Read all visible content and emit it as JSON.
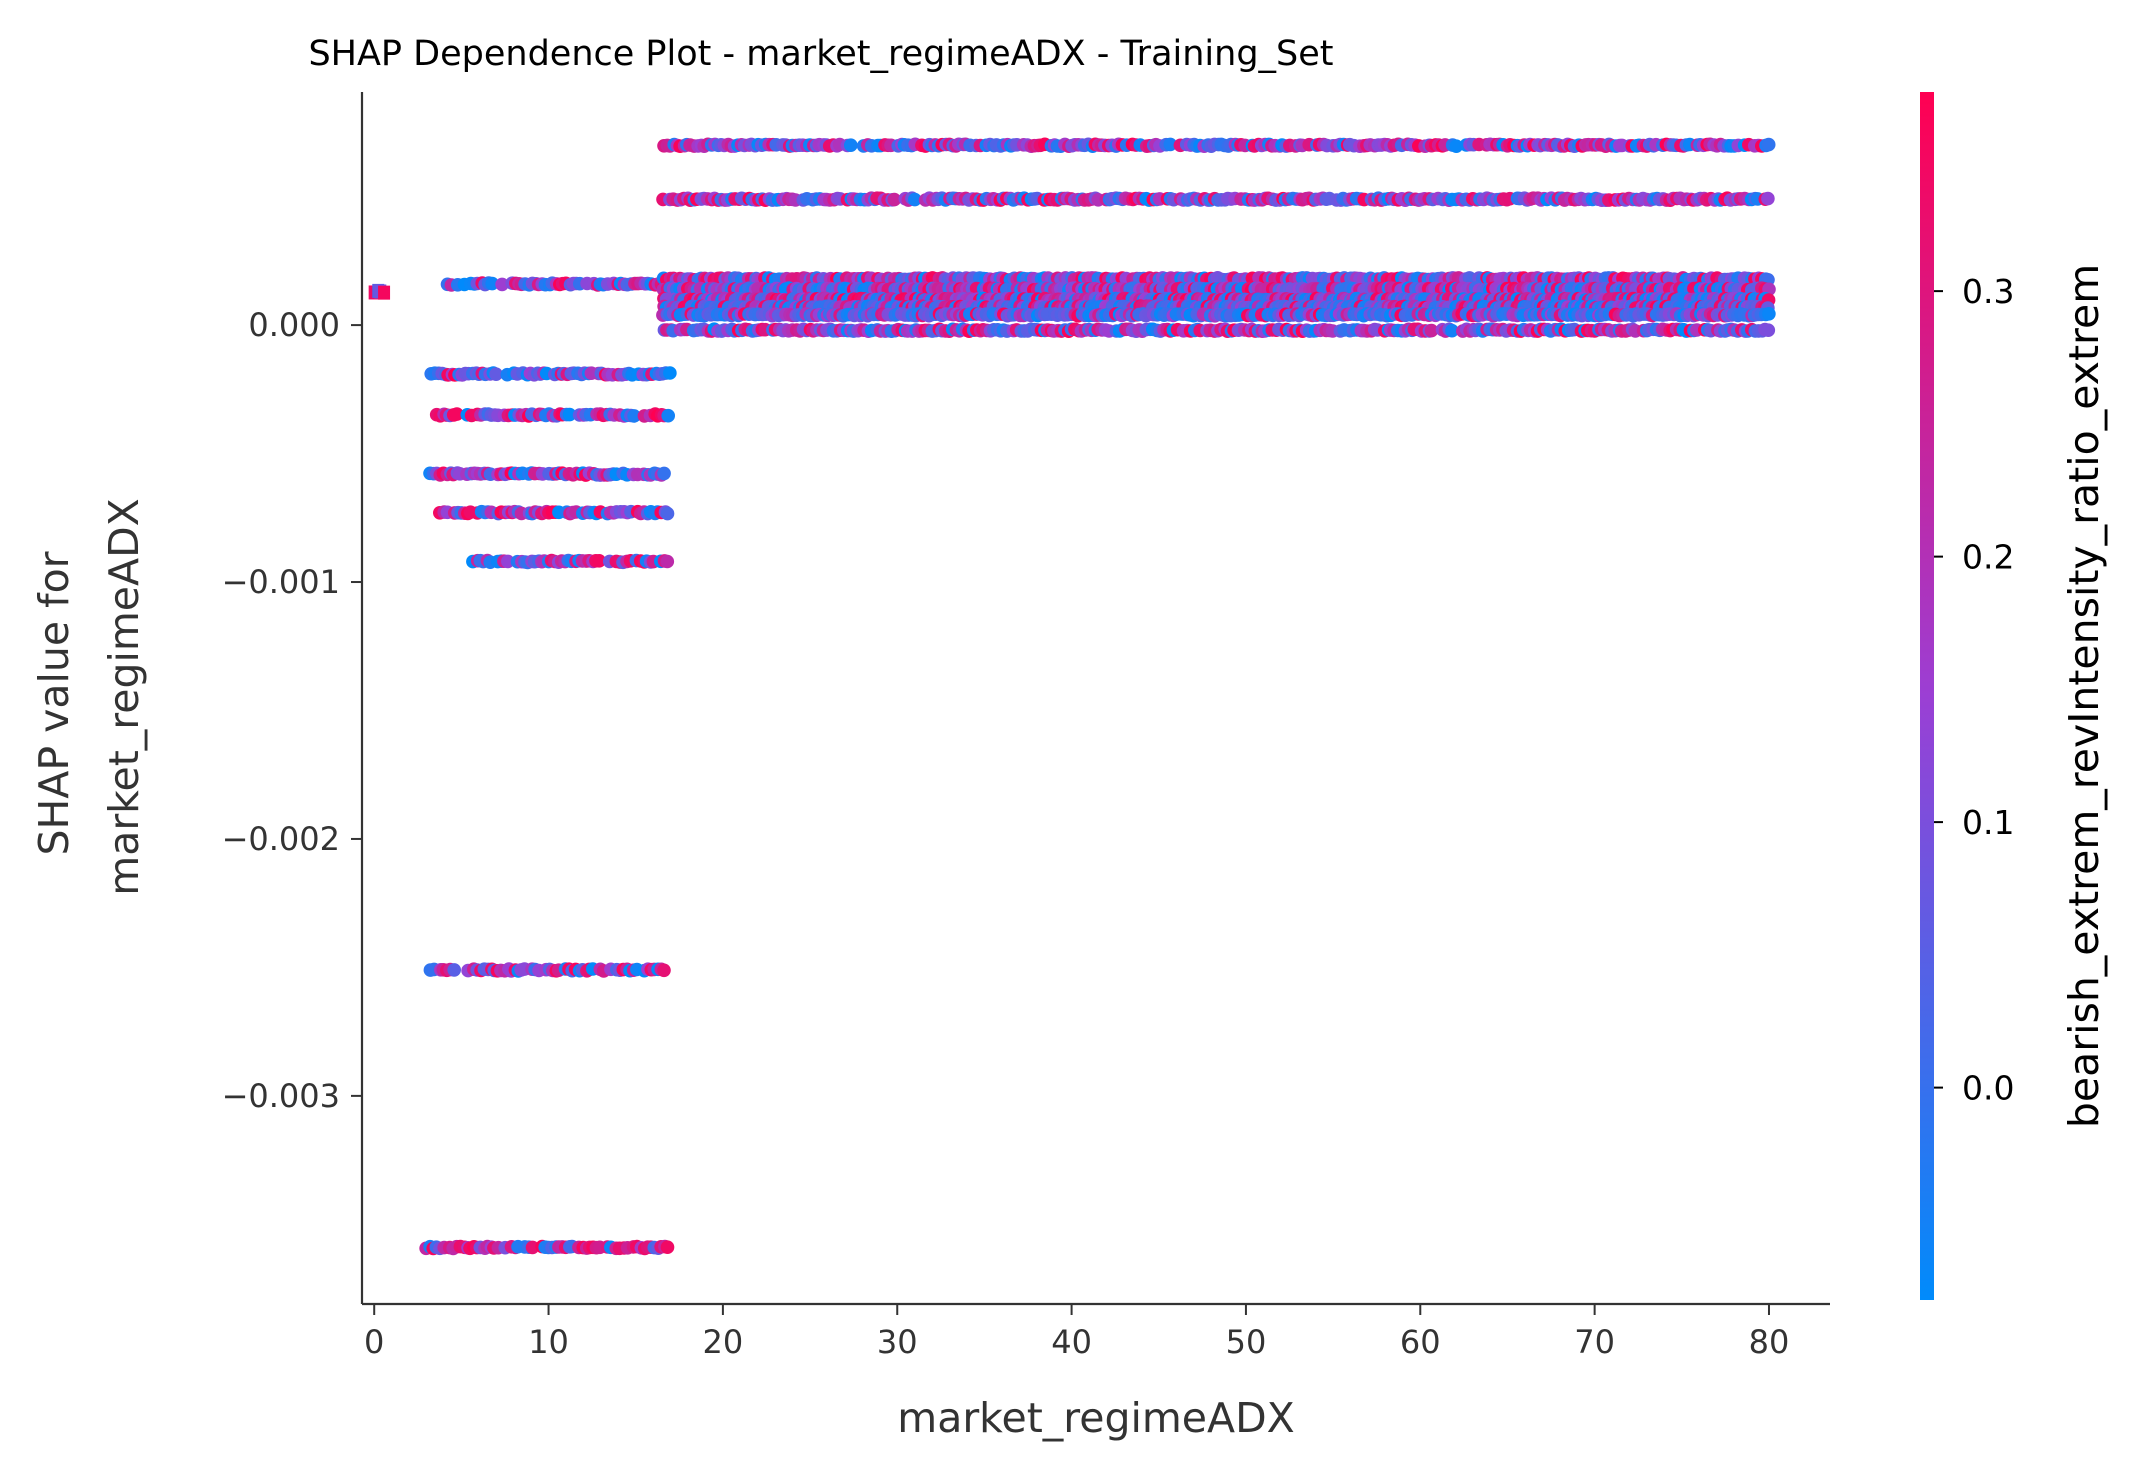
{
  "chart_data": {
    "type": "scatter",
    "title": "SHAP Dependence Plot - market_regimeADX - Training_Set",
    "xlabel": "market_regimeADX",
    "ylabel_lines": [
      "SHAP value for",
      "market_regimeADX"
    ],
    "xlim": [
      -0.7,
      83.5
    ],
    "ylim": [
      -0.00381,
      0.000915
    ],
    "x_ticks": [
      {
        "value": 0,
        "label": "0"
      },
      {
        "value": 10,
        "label": "10"
      },
      {
        "value": 20,
        "label": "20"
      },
      {
        "value": 30,
        "label": "30"
      },
      {
        "value": 40,
        "label": "40"
      },
      {
        "value": 50,
        "label": "50"
      },
      {
        "value": 60,
        "label": "60"
      },
      {
        "value": 70,
        "label": "70"
      },
      {
        "value": 80,
        "label": "80"
      }
    ],
    "y_ticks": [
      {
        "value": 0.0,
        "label": "0.000"
      },
      {
        "value": -0.001,
        "label": "−0.001"
      },
      {
        "value": -0.002,
        "label": "−0.002"
      },
      {
        "value": -0.003,
        "label": "−0.003"
      }
    ],
    "colorbar": {
      "label": "bearish_extrem_revIntensity_ratio_extrem",
      "range": [
        -0.08,
        0.375
      ],
      "colors": [
        "#008bfb",
        "#9b3fd4",
        "#ff0052"
      ],
      "ticks": [
        {
          "value": 0.0,
          "label": "0.0"
        },
        {
          "value": 0.1,
          "label": "0.1"
        },
        {
          "value": 0.2,
          "label": "0.2"
        },
        {
          "value": 0.3,
          "label": "0.3"
        }
      ]
    },
    "series": [
      {
        "x_min": 0.0,
        "x_max": 0.6,
        "y": 0.00013,
        "density": 1.0,
        "color_bias": "blue",
        "marker": "square"
      },
      {
        "x_min": 4.2,
        "x_max": 16.9,
        "y": 0.00016,
        "density": 0.85,
        "color_bias": "mixed"
      },
      {
        "x_min": 3.3,
        "x_max": 16.9,
        "y": -0.00019,
        "density": 0.9,
        "color_bias": "blue"
      },
      {
        "x_min": 3.6,
        "x_max": 16.9,
        "y": -0.00035,
        "density": 0.85,
        "color_bias": "mixed"
      },
      {
        "x_min": 3.2,
        "x_max": 16.9,
        "y": -0.00058,
        "density": 0.9,
        "color_bias": "mixed"
      },
      {
        "x_min": 3.8,
        "x_max": 16.9,
        "y": -0.00073,
        "density": 0.9,
        "color_bias": "mixed"
      },
      {
        "x_min": 5.7,
        "x_max": 16.9,
        "y": -0.00092,
        "density": 0.85,
        "color_bias": "mixed"
      },
      {
        "x_min": 3.2,
        "x_max": 16.9,
        "y": -0.00251,
        "density": 0.85,
        "color_bias": "mixed"
      },
      {
        "x_min": 3.0,
        "x_max": 16.9,
        "y": -0.00359,
        "density": 0.9,
        "color_bias": "red"
      },
      {
        "x_min": 16.6,
        "x_max": 79.9,
        "y": 0.0007,
        "density": 0.9,
        "color_bias": "mixed"
      },
      {
        "x_min": 16.6,
        "x_max": 79.9,
        "y": 0.00049,
        "density": 0.95,
        "color_bias": "mixed"
      },
      {
        "x_min": 16.6,
        "x_max": 79.9,
        "y": 0.00018,
        "density": 1.0,
        "color_bias": "mixed"
      },
      {
        "x_min": 16.6,
        "x_max": 79.9,
        "y": 0.00014,
        "density": 1.0,
        "color_bias": "mixed"
      },
      {
        "x_min": 16.6,
        "x_max": 79.9,
        "y": 0.0001,
        "density": 1.0,
        "color_bias": "mixed"
      },
      {
        "x_min": 16.6,
        "x_max": 79.9,
        "y": 7e-05,
        "density": 1.0,
        "color_bias": "blue"
      },
      {
        "x_min": 16.6,
        "x_max": 79.9,
        "y": 4e-05,
        "density": 1.0,
        "color_bias": "blue"
      },
      {
        "x_min": 16.6,
        "x_max": 79.9,
        "y": -2e-05,
        "density": 0.95,
        "color_bias": "mixed"
      }
    ]
  }
}
